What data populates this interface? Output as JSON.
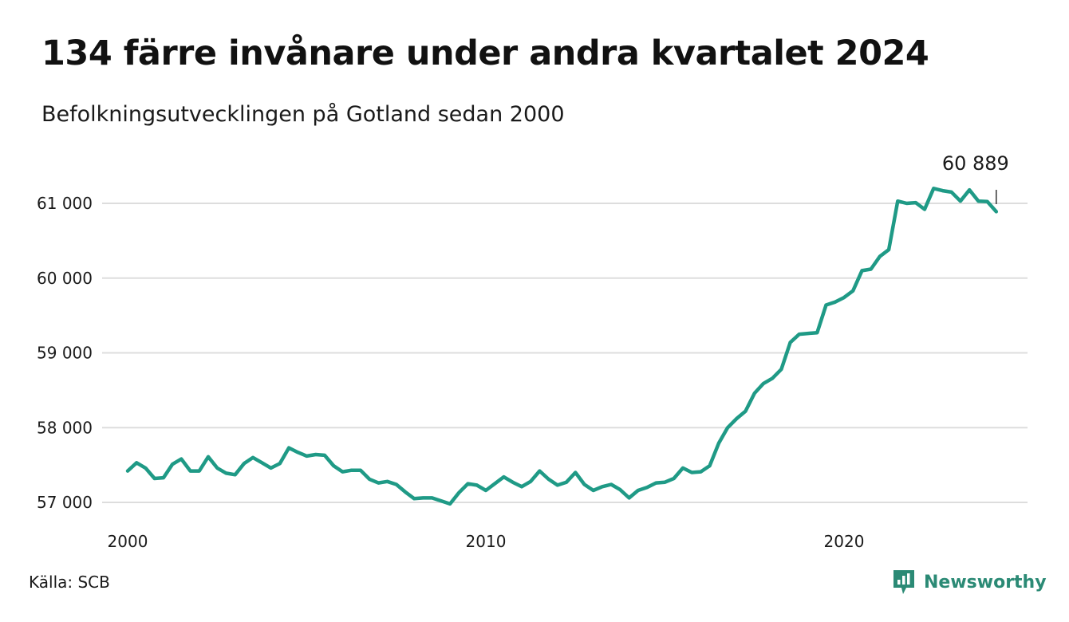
{
  "header": {
    "title": "134 färre invånare under andra kvartalet 2024",
    "subtitle": "Befolkningsutvecklingen på Gotland sedan 2000"
  },
  "footer": {
    "source": "Källa: SCB",
    "brand": "Newsworthy",
    "brand_icon": "newsworthy-logo-icon"
  },
  "colors": {
    "line": "#1f9a86",
    "grid": "#dddddd",
    "brand": "#2b8a75"
  },
  "chart_data": {
    "type": "line",
    "title": "134 färre invånare under andra kvartalet 2024",
    "subtitle": "Befolkningsutvecklingen på Gotland sedan 2000",
    "xlabel": "",
    "ylabel": "",
    "x_range": [
      2000,
      2024.5
    ],
    "ylim": [
      57000,
      61400
    ],
    "y_ticks": [
      57000,
      58000,
      59000,
      60000,
      61000
    ],
    "y_tick_labels": [
      "57 000",
      "58 000",
      "59 000",
      "60 000",
      "61 000"
    ],
    "x_ticks": [
      2000,
      2010,
      2020
    ],
    "x_tick_labels": [
      "2000",
      "2010",
      "2020"
    ],
    "grid": true,
    "legend": "none",
    "annotation": {
      "label": "60 889",
      "x": 2024.25,
      "y": 60889
    },
    "series": [
      {
        "x": [
          2000.0,
          2000.25,
          2000.5,
          2000.75,
          2001.0,
          2001.25,
          2001.5,
          2001.75,
          2002.0,
          2002.25,
          2002.5,
          2002.75,
          2003.0,
          2003.25,
          2003.5,
          2003.75,
          2004.0,
          2004.25,
          2004.5,
          2004.75,
          2005.0,
          2005.25,
          2005.5,
          2005.75,
          2006.0,
          2006.25,
          2006.5,
          2006.75,
          2007.0,
          2007.25,
          2007.5,
          2007.75,
          2008.0,
          2008.25,
          2008.5,
          2008.75,
          2009.0,
          2009.25,
          2009.5,
          2009.75,
          2010.0,
          2010.25,
          2010.5,
          2010.75,
          2011.0,
          2011.25,
          2011.5,
          2011.75,
          2012.0,
          2012.25,
          2012.5,
          2012.75,
          2013.0,
          2013.25,
          2013.5,
          2013.75,
          2014.0,
          2014.25,
          2014.5,
          2014.75,
          2015.0,
          2015.25,
          2015.5,
          2015.75,
          2016.0,
          2016.25,
          2016.5,
          2016.75,
          2017.0,
          2017.25,
          2017.5,
          2017.75,
          2018.0,
          2018.25,
          2018.5,
          2018.75,
          2019.0,
          2019.25,
          2019.5,
          2019.75,
          2020.0,
          2020.25,
          2020.5,
          2020.75,
          2021.0,
          2021.25,
          2021.5,
          2021.75,
          2022.0,
          2022.25,
          2022.5,
          2022.75,
          2023.0,
          2023.25,
          2023.5,
          2023.75,
          2024.0,
          2024.25
        ],
        "values": [
          57420,
          57530,
          57460,
          57320,
          57330,
          57510,
          57580,
          57420,
          57420,
          57610,
          57460,
          57390,
          57370,
          57520,
          57600,
          57530,
          57460,
          57520,
          57730,
          57670,
          57620,
          57640,
          57630,
          57490,
          57410,
          57430,
          57430,
          57310,
          57260,
          57280,
          57240,
          57140,
          57050,
          57060,
          57060,
          57020,
          56980,
          57130,
          57250,
          57230,
          57160,
          57250,
          57340,
          57270,
          57210,
          57280,
          57420,
          57310,
          57230,
          57270,
          57400,
          57240,
          57160,
          57210,
          57240,
          57170,
          57060,
          57160,
          57200,
          57260,
          57270,
          57320,
          57460,
          57400,
          57410,
          57490,
          57790,
          58000,
          58120,
          58220,
          58460,
          58590,
          58660,
          58780,
          59140,
          59250,
          59260,
          59270,
          59640,
          59680,
          59740,
          59830,
          60100,
          60120,
          60290,
          60380,
          61030,
          61000,
          61010,
          60920,
          61200,
          61170,
          61150,
          61030,
          61180,
          61030,
          61023,
          60889
        ]
      }
    ]
  }
}
